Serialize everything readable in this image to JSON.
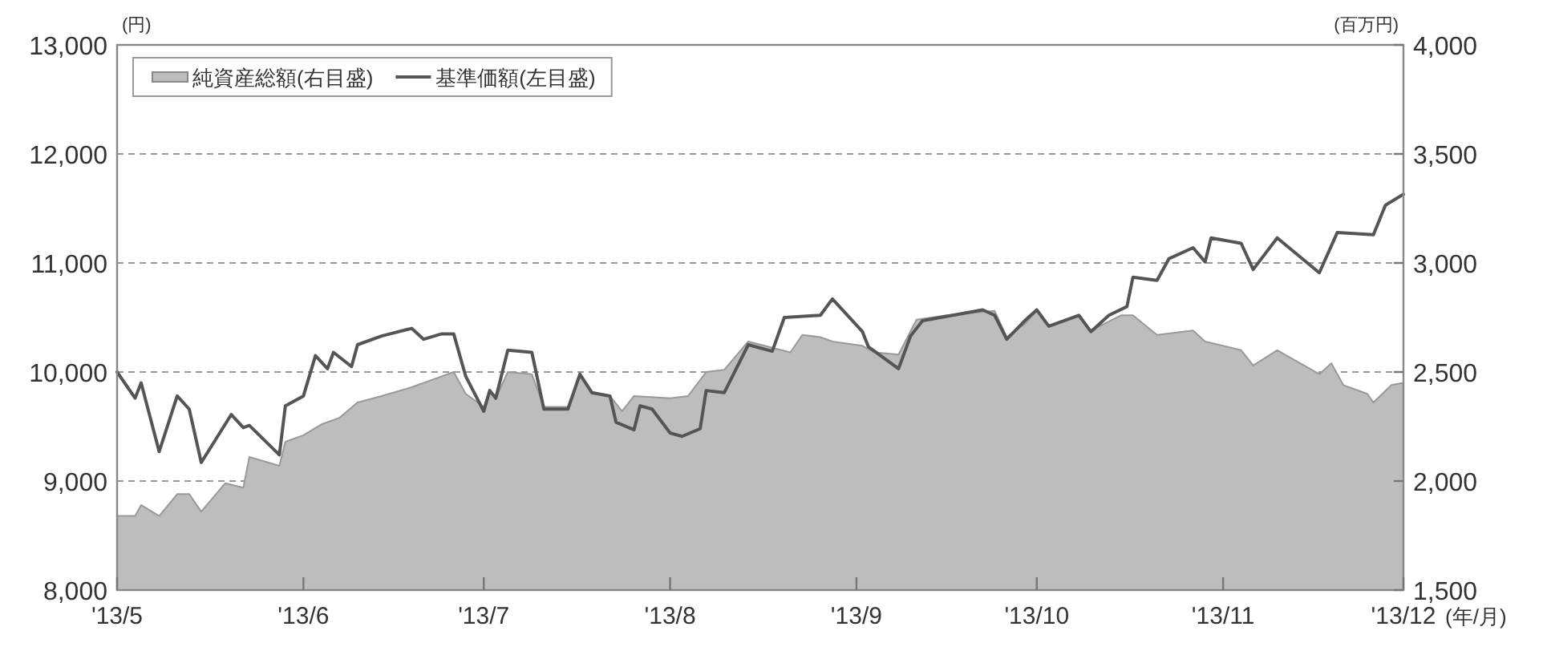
{
  "chart_data": {
    "type": "line",
    "xlabel": "(年/月)",
    "ylabel": "(円)",
    "y2label": "(百万円)",
    "xlim": [
      "2013-05-01",
      "2013-12-01"
    ],
    "xticks": [
      {
        "value": "2013-05-01",
        "label": "'13/5"
      },
      {
        "value": "2013-06-01",
        "label": "'13/6"
      },
      {
        "value": "2013-07-01",
        "label": "'13/7"
      },
      {
        "value": "2013-08-01",
        "label": "'13/8"
      },
      {
        "value": "2013-09-01",
        "label": "'13/9"
      },
      {
        "value": "2013-10-01",
        "label": "'13/10"
      },
      {
        "value": "2013-11-01",
        "label": "'13/11"
      },
      {
        "value": "2013-12-01",
        "label": "'13/12"
      }
    ],
    "ylim": [
      8000,
      13000
    ],
    "yticks": [
      {
        "value": 8000,
        "label": "8,000"
      },
      {
        "value": 9000,
        "label": "9,000"
      },
      {
        "value": 10000,
        "label": "10,000"
      },
      {
        "value": 11000,
        "label": "11,000"
      },
      {
        "value": 12000,
        "label": "12,000"
      },
      {
        "value": 13000,
        "label": "13,000"
      }
    ],
    "y2lim": [
      1500,
      4000
    ],
    "y2ticks": [
      {
        "value": 1500,
        "label": "1,500"
      },
      {
        "value": 2000,
        "label": "2,000"
      },
      {
        "value": 2500,
        "label": "2,500"
      },
      {
        "value": 3000,
        "label": "3,000"
      },
      {
        "value": 3500,
        "label": "3,500"
      },
      {
        "value": 4000,
        "label": "4,000"
      }
    ],
    "grid": "y",
    "legend": "top left",
    "marker": "none",
    "line_style": "solid",
    "series": [
      {
        "name": "純資産総額(右目盛)",
        "type": "area",
        "axis": "y2",
        "color": "#bdbdbd",
        "x": [
          "2013-05-01",
          "2013-05-04",
          "2013-05-05",
          "2013-05-08",
          "2013-05-11",
          "2013-05-13",
          "2013-05-15",
          "2013-05-19",
          "2013-05-22",
          "2013-05-23",
          "2013-05-28",
          "2013-05-29",
          "2013-06-01",
          "2013-06-04",
          "2013-06-07",
          "2013-06-10",
          "2013-06-14",
          "2013-06-19",
          "2013-06-23",
          "2013-06-26",
          "2013-06-28",
          "2013-07-01",
          "2013-07-02",
          "2013-07-03",
          "2013-07-05",
          "2013-07-09",
          "2013-07-11",
          "2013-07-15",
          "2013-07-17",
          "2013-07-19",
          "2013-07-22",
          "2013-07-24",
          "2013-07-26",
          "2013-08-01",
          "2013-08-04",
          "2013-08-07",
          "2013-08-10",
          "2013-08-14",
          "2013-08-21",
          "2013-08-23",
          "2013-08-26",
          "2013-08-28",
          "2013-09-02",
          "2013-09-04",
          "2013-09-08",
          "2013-09-11",
          "2013-09-16",
          "2013-09-24",
          "2013-09-26",
          "2013-09-29",
          "2013-10-01",
          "2013-10-03",
          "2013-10-08",
          "2013-10-10",
          "2013-10-15",
          "2013-10-17",
          "2013-10-21",
          "2013-10-27",
          "2013-10-29",
          "2013-11-04",
          "2013-11-06",
          "2013-11-10",
          "2013-11-17",
          "2013-11-19",
          "2013-11-21",
          "2013-11-25",
          "2013-11-26",
          "2013-11-29",
          "2013-12-01"
        ],
        "values": [
          1840,
          1840,
          1890,
          1840,
          1940,
          1940,
          1860,
          1990,
          1970,
          2110,
          2070,
          2180,
          2210,
          2260,
          2290,
          2360,
          2390,
          2430,
          2470,
          2500,
          2400,
          2340,
          2420,
          2380,
          2500,
          2490,
          2340,
          2340,
          2480,
          2400,
          2390,
          2320,
          2390,
          2380,
          2390,
          2500,
          2510,
          2640,
          2590,
          2670,
          2660,
          2640,
          2620,
          2590,
          2580,
          2740,
          2760,
          2780,
          2660,
          2720,
          2780,
          2710,
          2760,
          2690,
          2760,
          2760,
          2670,
          2690,
          2640,
          2600,
          2530,
          2600,
          2490,
          2540,
          2440,
          2400,
          2360,
          2440,
          2450
        ]
      },
      {
        "name": "基準価額(左目盛)",
        "axis": "y",
        "color": "#555555",
        "x": [
          "2013-05-01",
          "2013-05-04",
          "2013-05-05",
          "2013-05-08",
          "2013-05-11",
          "2013-05-13",
          "2013-05-15",
          "2013-05-20",
          "2013-05-22",
          "2013-05-23",
          "2013-05-28",
          "2013-05-29",
          "2013-06-01",
          "2013-06-03",
          "2013-06-05",
          "2013-06-06",
          "2013-06-09",
          "2013-06-10",
          "2013-06-14",
          "2013-06-19",
          "2013-06-21",
          "2013-06-24",
          "2013-06-26",
          "2013-06-28",
          "2013-07-01",
          "2013-07-02",
          "2013-07-03",
          "2013-07-05",
          "2013-07-09",
          "2013-07-11",
          "2013-07-15",
          "2013-07-17",
          "2013-07-19",
          "2013-07-22",
          "2013-07-23",
          "2013-07-26",
          "2013-07-27",
          "2013-07-29",
          "2013-08-01",
          "2013-08-03",
          "2013-08-06",
          "2013-08-07",
          "2013-08-10",
          "2013-08-14",
          "2013-08-18",
          "2013-08-20",
          "2013-08-26",
          "2013-08-28",
          "2013-09-02",
          "2013-09-03",
          "2013-09-08",
          "2013-09-10",
          "2013-09-12",
          "2013-09-22",
          "2013-09-24",
          "2013-09-26",
          "2013-09-29",
          "2013-10-01",
          "2013-10-03",
          "2013-10-08",
          "2013-10-10",
          "2013-10-13",
          "2013-10-16",
          "2013-10-17",
          "2013-10-21",
          "2013-10-23",
          "2013-10-27",
          "2013-10-29",
          "2013-10-30",
          "2013-11-04",
          "2013-11-06",
          "2013-11-10",
          "2013-11-17",
          "2013-11-20",
          "2013-11-26",
          "2013-11-28",
          "2013-12-01"
        ],
        "values": [
          10000,
          9760,
          9900,
          9270,
          9780,
          9660,
          9170,
          9610,
          9490,
          9510,
          9240,
          9690,
          9780,
          10150,
          10030,
          10180,
          10050,
          10250,
          10330,
          10400,
          10300,
          10350,
          10350,
          9960,
          9640,
          9830,
          9760,
          10200,
          10180,
          9660,
          9660,
          9980,
          9810,
          9780,
          9540,
          9470,
          9690,
          9660,
          9440,
          9410,
          9480,
          9830,
          9810,
          10250,
          10190,
          10500,
          10520,
          10670,
          10370,
          10230,
          10030,
          10330,
          10470,
          10570,
          10520,
          10300,
          10470,
          10570,
          10420,
          10520,
          10370,
          10520,
          10600,
          10870,
          10840,
          11040,
          11140,
          11010,
          11230,
          11180,
          10940,
          11230,
          10910,
          11280,
          11260,
          11530,
          11630
        ]
      }
    ]
  }
}
